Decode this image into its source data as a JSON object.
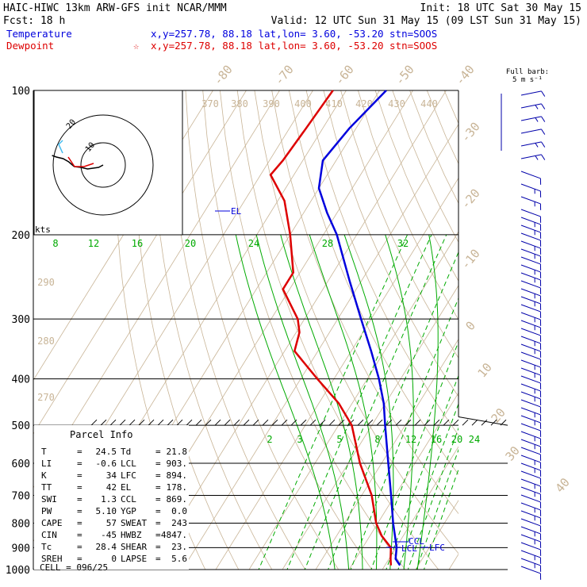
{
  "header": {
    "line1_left": "HAIC-HIWC 13km ARW-GFS init   NCAR/MMM",
    "line1_right": "Init: 18 UTC Sat 30 May 15",
    "line2_left": "Fcst:   18 h",
    "line2_right": "Valid: 12 UTC Sun 31 May 15 (09 LST Sun 31 May 15)",
    "temp_label": "Temperature",
    "temp_info": "x,y=257.78, 88.18   lat,lon=  3.60, -53.20  stn=SOOS",
    "dew_label": "Dewpoint",
    "dew_info": "x,y=257.78, 88.18   lat,lon=  3.60, -53.20  stn=SOOS",
    "dew_marker": "☆"
  },
  "colors": {
    "temperature": "#0000dd",
    "dewpoint": "#dd0000",
    "mixing_ratio": "#00aa00",
    "theta": "#c8b496",
    "isotherm": "#c8b496",
    "isobar": "#000000"
  },
  "barb_legend": {
    "line1": "Full barb:",
    "line2": "5 m s⁻¹"
  },
  "hodograph": {
    "ring_labels": [
      "10",
      "20"
    ],
    "units": "kts"
  },
  "chart_data": {
    "type": "skew-t",
    "pressure_labels": [
      "100",
      "200",
      "300",
      "400",
      "500",
      "600",
      "700",
      "800",
      "900",
      "1000"
    ],
    "temperature_labels": [
      "-80",
      "-70",
      "-60",
      "-50",
      "-40",
      "-30",
      "-20",
      "-10",
      "0",
      "10",
      "20",
      "30",
      "40"
    ],
    "theta_labels": [
      "370",
      "380",
      "390",
      "400",
      "410",
      "420",
      "430",
      "440",
      "290",
      "280",
      "270"
    ],
    "mixing_ratio_labels_top": [
      "8",
      "12",
      "16",
      "20",
      "24",
      "28",
      "32"
    ],
    "mixing_ratio_labels_bottom": [
      "2",
      "3",
      "5",
      "8",
      "12",
      "16",
      "20",
      "24"
    ],
    "annotations": [
      "EL",
      "CCL",
      "LCL",
      "LFC"
    ],
    "temperature_profile": [
      {
        "p": 980,
        "t": 24.5
      },
      {
        "p": 950,
        "t": 22.0
      },
      {
        "p": 900,
        "t": 20.2
      },
      {
        "p": 850,
        "t": 17.5
      },
      {
        "p": 800,
        "t": 14.6
      },
      {
        "p": 700,
        "t": 8.8
      },
      {
        "p": 600,
        "t": 2.0
      },
      {
        "p": 500,
        "t": -6.0
      },
      {
        "p": 450,
        "t": -10.5
      },
      {
        "p": 400,
        "t": -16.5
      },
      {
        "p": 350,
        "t": -24.0
      },
      {
        "p": 300,
        "t": -33.0
      },
      {
        "p": 250,
        "t": -43.5
      },
      {
        "p": 200,
        "t": -56.0
      },
      {
        "p": 180,
        "t": -63.0
      },
      {
        "p": 160,
        "t": -70.0
      },
      {
        "p": 140,
        "t": -74.0
      },
      {
        "p": 120,
        "t": -72.0
      },
      {
        "p": 100,
        "t": -68.0
      }
    ],
    "dewpoint_profile": [
      {
        "p": 980,
        "t": 21.8
      },
      {
        "p": 950,
        "t": 20.5
      },
      {
        "p": 900,
        "t": 18.5
      },
      {
        "p": 850,
        "t": 13.5
      },
      {
        "p": 800,
        "t": 9.5
      },
      {
        "p": 700,
        "t": 3.0
      },
      {
        "p": 600,
        "t": -6.5
      },
      {
        "p": 500,
        "t": -16.0
      },
      {
        "p": 450,
        "t": -24.0
      },
      {
        "p": 400,
        "t": -35.0
      },
      {
        "p": 350,
        "t": -47.0
      },
      {
        "p": 320,
        "t": -49.0
      },
      {
        "p": 300,
        "t": -52.0
      },
      {
        "p": 260,
        "t": -62.0
      },
      {
        "p": 240,
        "t": -62.0
      },
      {
        "p": 200,
        "t": -70.0
      },
      {
        "p": 170,
        "t": -78.0
      },
      {
        "p": 150,
        "t": -87.0
      },
      {
        "p": 140,
        "t": -86.0
      },
      {
        "p": 120,
        "t": -85.0
      },
      {
        "p": 100,
        "t": -84.0
      }
    ],
    "hodograph_trace": [
      [
        0,
        0
      ],
      [
        -4,
        3
      ],
      [
        -9,
        4
      ],
      [
        -14,
        5
      ],
      [
        -20,
        3
      ],
      [
        -26,
        2
      ],
      [
        -31,
        -4
      ],
      [
        -36,
        -8
      ],
      [
        -42,
        -10
      ],
      [
        -46,
        -12
      ]
    ],
    "parcel_info": {
      "title": "Parcel Info",
      "rows": [
        [
          "T",
          "24.5",
          "Td",
          "21.8"
        ],
        [
          "LI",
          "-0.6",
          "LCL",
          "903."
        ],
        [
          "K",
          "34",
          "LFC",
          "894."
        ],
        [
          "TT",
          "42",
          "EL",
          "178."
        ],
        [
          "SWI",
          "1.3",
          "CCL",
          "869."
        ],
        [
          "PW",
          "5.10",
          "YGP",
          "0.0"
        ],
        [
          "CAPE",
          "57",
          "SWEAT",
          "243"
        ],
        [
          "CIN",
          "-45",
          "HWBZ",
          "4847."
        ],
        [
          "Tc",
          "28.4",
          "SHEAR",
          "23."
        ],
        [
          "SREH",
          "0",
          "LAPSE",
          "5.6"
        ]
      ],
      "cell": "CELL = 096/25"
    }
  }
}
